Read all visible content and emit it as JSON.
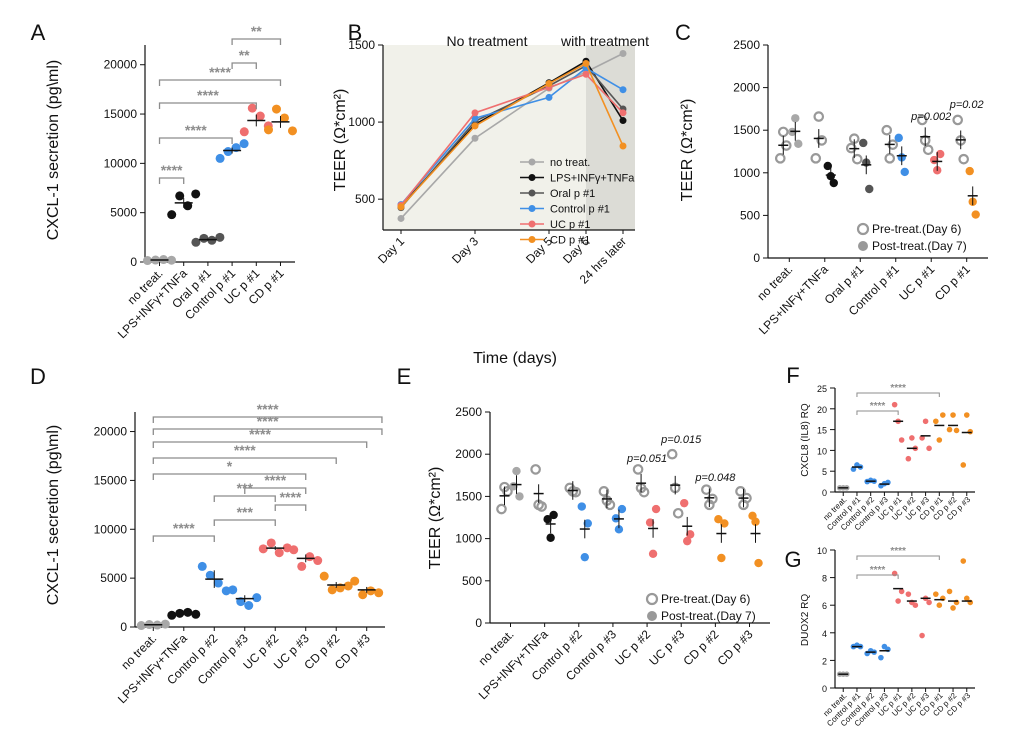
{
  "colors": {
    "grey": "#a8a8a8",
    "dark_grey": "#555555",
    "black": "#111111",
    "blue": "#3f8fe6",
    "pink": "#ef6f6f",
    "orange": "#f29022",
    "sig": "#8c8c8c"
  },
  "chart_data": [
    {
      "panel": "A",
      "type": "scatter",
      "ylabel": "CXCL-1 secretion (pg\\ml)",
      "ylim": [
        0,
        22000
      ],
      "yticks": [
        0,
        5000,
        10000,
        15000,
        20000
      ],
      "categories": [
        "no treat.",
        "LPS+INFγ+TNFa",
        "Oral p #1",
        "Control p #1",
        "UC p #1",
        "CD p #1"
      ],
      "series": [
        {
          "name": "no treat.",
          "color": "grey",
          "values": [
            150,
            200,
            250,
            180
          ]
        },
        {
          "name": "LPS+INFγ+TNFa",
          "color": "black",
          "values": [
            4800,
            6700,
            5700,
            6900
          ]
        },
        {
          "name": "Oral p #1",
          "color": "dark_grey",
          "values": [
            2000,
            2400,
            2200,
            2500
          ]
        },
        {
          "name": "Control p #1",
          "color": "blue",
          "values": [
            10500,
            11200,
            11600,
            12000
          ]
        },
        {
          "name": "UC p #1",
          "color": "pink",
          "values": [
            13200,
            15600,
            14800,
            13800
          ]
        },
        {
          "name": "CD p #1",
          "color": "orange",
          "values": [
            13400,
            15500,
            14600,
            13300
          ]
        }
      ],
      "means": [
        200,
        6000,
        2270,
        11300,
        14350,
        14200
      ],
      "sems": [
        30,
        500,
        120,
        300,
        600,
        600
      ],
      "significance": [
        {
          "from": 0,
          "to": 1,
          "label": "****",
          "y": 9200
        },
        {
          "from": 0,
          "to": 3,
          "label": "****",
          "y": 13800
        },
        {
          "from": 0,
          "to": 4,
          "label": "****",
          "y": 17500
        },
        {
          "from": 0,
          "to": 5,
          "label": "****",
          "y": 19000
        },
        {
          "from": 3,
          "to": 4,
          "label": "**",
          "y": 21600
        },
        {
          "from": 3,
          "to": 5,
          "label": "**",
          "y": 24500
        }
      ]
    },
    {
      "panel": "B",
      "type": "line",
      "ylabel": "TEER (Ω*cm²)",
      "xlabel": "Time (days)",
      "ylim": [
        300,
        1500
      ],
      "yticks": [
        500,
        1000,
        1500
      ],
      "categories": [
        "Day 1",
        "Day 3",
        "Day 5",
        "Day 6",
        "24 hrs later"
      ],
      "x": [
        1,
        3,
        5,
        6,
        7
      ],
      "region_labels": [
        "No treatment",
        "with treatment"
      ],
      "series": [
        {
          "name": "no treat.",
          "color": "grey",
          "values": [
            375,
            895,
            1220,
            1325,
            1445
          ]
        },
        {
          "name": "LPS+INFγ+TNFa",
          "color": "black",
          "values": [
            455,
            985,
            1255,
            1395,
            1010
          ]
        },
        {
          "name": "Oral p #1",
          "color": "dark_grey",
          "values": [
            445,
            1005,
            1235,
            1365,
            1085
          ]
        },
        {
          "name": "Control p #1",
          "color": "blue",
          "values": [
            465,
            1025,
            1160,
            1350,
            1210
          ]
        },
        {
          "name": "UC p #1",
          "color": "pink",
          "values": [
            460,
            1060,
            1225,
            1310,
            1060
          ]
        },
        {
          "name": "CD p #1",
          "color": "orange",
          "values": [
            450,
            975,
            1250,
            1380,
            845
          ]
        }
      ],
      "legend": [
        "no treat.",
        "LPS+INFγ+TNFa",
        "Oral p #1",
        "Control  p #1",
        "UC p #1",
        "CD p #1"
      ]
    },
    {
      "panel": "C",
      "type": "scatter",
      "ylabel": "TEER (Ω*cm²)",
      "ylim": [
        0,
        2500
      ],
      "yticks": [
        0,
        500,
        1000,
        1500,
        2000,
        2500
      ],
      "categories": [
        "no treat.",
        "LPS+INFγ+TNFa",
        "Oral p #1",
        "Control p #1",
        "UC p #1",
        "CD p #1"
      ],
      "colors": [
        "grey",
        "black",
        "dark_grey",
        "blue",
        "pink",
        "orange"
      ],
      "pre": [
        [
          1170,
          1480,
          1320
        ],
        [
          1170,
          1660,
          1380
        ],
        [
          1290,
          1400,
          1160
        ],
        [
          1500,
          1170,
          1330
        ],
        [
          1620,
          1380,
          1270
        ],
        [
          1620,
          1380,
          1160
        ]
      ],
      "post": [
        [
          1480,
          1640,
          1340
        ],
        [
          1080,
          960,
          880
        ],
        [
          1350,
          1120,
          810
        ],
        [
          1410,
          1180,
          1010
        ],
        [
          1150,
          1030,
          1220
        ],
        [
          1020,
          660,
          510
        ]
      ],
      "pvalues": [
        {
          "cat": 4,
          "label": "p=0.002"
        },
        {
          "cat": 5,
          "label": "p=0.02"
        }
      ],
      "legend": [
        "Pre-treat.(Day 6)",
        "Post-treat.(Day 7)"
      ]
    },
    {
      "panel": "D",
      "type": "scatter",
      "ylabel": "CXCL-1 secretion (pg\\ml)",
      "ylim": [
        0,
        22000
      ],
      "yticks": [
        0,
        5000,
        10000,
        15000,
        20000
      ],
      "categories": [
        "no treat.",
        "LPS+INFγ+TNFa",
        "Control p #2",
        "Control p #3",
        "UC p #2",
        "UC p #3",
        "CD p #2",
        "CD p #3"
      ],
      "series": [
        {
          "name": "no treat.",
          "color": "grey",
          "values": [
            150,
            250,
            200,
            300
          ]
        },
        {
          "name": "LPS+INFγ+TNFa",
          "color": "black",
          "values": [
            1200,
            1400,
            1500,
            1300
          ]
        },
        {
          "name": "Control p #2",
          "color": "blue",
          "values": [
            6200,
            5300,
            4500,
            3700
          ]
        },
        {
          "name": "Control p #3",
          "color": "blue",
          "values": [
            3800,
            2600,
            2200,
            3000
          ]
        },
        {
          "name": "UC p #2",
          "color": "pink",
          "values": [
            8000,
            8600,
            7600,
            8100
          ]
        },
        {
          "name": "UC p #3",
          "color": "pink",
          "values": [
            7900,
            6200,
            7200,
            6800
          ]
        },
        {
          "name": "CD p #2",
          "color": "orange",
          "values": [
            5200,
            3800,
            4000,
            4200
          ]
        },
        {
          "name": "CD p #3",
          "color": "orange",
          "values": [
            4700,
            3300,
            3700,
            3500
          ]
        }
      ],
      "means": [
        225,
        1350,
        4900,
        2900,
        8075,
        7025,
        4300,
        3800
      ],
      "sems": [
        30,
        60,
        900,
        350,
        200,
        400,
        300,
        300
      ],
      "significance": [
        {
          "from": 0,
          "to": 2,
          "label": "****",
          "y": 10000
        },
        {
          "from": 2,
          "to": 4,
          "label": "***",
          "y": 11700
        },
        {
          "from": 4,
          "to": 5,
          "label": "****",
          "y": 11700
        },
        {
          "from": 2,
          "to": 4,
          "label": "***",
          "y": 14000
        },
        {
          "from": 3,
          "to": 5,
          "label": "****",
          "y": 14000
        },
        {
          "from": 0,
          "to": 5,
          "label": "*",
          "y": 16000
        },
        {
          "from": 0,
          "to": 6,
          "label": "****",
          "y": 18000
        },
        {
          "from": 0,
          "to": 7,
          "label": "****",
          "y": 20000
        },
        {
          "from": 0,
          "to": 8,
          "label": "****",
          "y": 22000
        },
        {
          "from": 0,
          "to": 9,
          "label": "****",
          "y": 24000
        }
      ]
    },
    {
      "panel": "E",
      "type": "scatter",
      "ylabel": "TEER (Ω*cm²)",
      "ylim": [
        0,
        2500
      ],
      "yticks": [
        0,
        500,
        1000,
        1500,
        2000,
        2500
      ],
      "categories": [
        "no treat.",
        "LPS+INFγ+TNFa",
        "Control p #2",
        "Control p #3",
        "UC p #2",
        "UC p #3",
        "CD p #2",
        "CD p #3"
      ],
      "colors": [
        "grey",
        "black",
        "blue",
        "blue",
        "pink",
        "pink",
        "orange",
        "orange"
      ],
      "pre": [
        [
          1350,
          1610,
          1560
        ],
        [
          1820,
          1400,
          1380
        ],
        [
          1600,
          1560,
          1550
        ],
        [
          1560,
          1450,
          1400
        ],
        [
          1820,
          1600,
          1550
        ],
        [
          2000,
          1600,
          1300
        ],
        [
          1580,
          1400,
          1470
        ],
        [
          1560,
          1400,
          1480
        ]
      ],
      "post": [
        [
          1620,
          1800,
          1500
        ],
        [
          1230,
          1010,
          1280
        ],
        [
          1380,
          780,
          1180
        ],
        [
          1240,
          1110,
          1350
        ],
        [
          1190,
          820,
          1350
        ],
        [
          1420,
          970,
          1050
        ],
        [
          1230,
          770,
          1180
        ],
        [
          1270,
          1200,
          710
        ]
      ],
      "pvalues": [
        {
          "cat": 4,
          "label": "p=0.051"
        },
        {
          "cat": 5,
          "label": "p=0.015"
        },
        {
          "cat": 6,
          "label": "p=0.048"
        }
      ],
      "legend": [
        "Pre-treat.(Day 6)",
        "Post-treat.(Day 7)"
      ]
    },
    {
      "panel": "F",
      "type": "scatter",
      "ylabel": "CXCL8 (IL8) RQ",
      "ylim": [
        0,
        25
      ],
      "yticks": [
        0,
        5,
        10,
        15,
        20,
        25
      ],
      "categories": [
        "no treat.",
        "Control p #1",
        "Control p #2",
        "Control p #3",
        "UC p #1",
        "UC p #2",
        "UC p #3",
        "CD p #1",
        "CD p #2",
        "CD p #3"
      ],
      "colors": [
        "grey",
        "blue",
        "blue",
        "blue",
        "pink",
        "pink",
        "pink",
        "orange",
        "orange",
        "orange"
      ],
      "series": [
        [
          1,
          1,
          1
        ],
        [
          5.5,
          6.5,
          6
        ],
        [
          2.5,
          2.8,
          2.6
        ],
        [
          1.5,
          2.0,
          2.3
        ],
        [
          21,
          17,
          12.5
        ],
        [
          8,
          13,
          10.5
        ],
        [
          13,
          17,
          10.5
        ],
        [
          17,
          12.5,
          18.5
        ],
        [
          15,
          18.5,
          14.8
        ],
        [
          6.5,
          18.5,
          14.5
        ]
      ],
      "means": [
        1,
        6,
        2.6,
        1.9,
        17,
        10.5,
        13.5,
        16,
        16,
        14.3
      ],
      "significance": [
        {
          "from": 1,
          "to": 4,
          "label": "****",
          "y": 16.5
        },
        {
          "from": 1,
          "to": 7,
          "label": "****",
          "y": 22
        }
      ]
    },
    {
      "panel": "G",
      "type": "scatter",
      "ylabel": "DUOX2 RQ",
      "ylim": [
        0,
        10
      ],
      "yticks": [
        0,
        2,
        4,
        6,
        8,
        10
      ],
      "categories": [
        "no treat.",
        "Control p #1",
        "Control p #2",
        "Control p #3",
        "UC p #1",
        "UC p #2",
        "UC p #3",
        "CD p #1",
        "CD p #2",
        "CD p #3"
      ],
      "colors": [
        "grey",
        "blue",
        "blue",
        "blue",
        "pink",
        "pink",
        "pink",
        "orange",
        "orange",
        "orange"
      ],
      "series": [
        [
          1,
          1,
          1
        ],
        [
          3.0,
          3.1,
          3.0
        ],
        [
          2.5,
          2.7,
          2.6
        ],
        [
          2.2,
          3.0,
          2.8
        ],
        [
          8.3,
          6.3,
          7.0
        ],
        [
          6.8,
          6.2,
          6.0
        ],
        [
          3.8,
          6.5,
          6.2
        ],
        [
          6.8,
          6.0,
          6.5
        ],
        [
          7.0,
          5.8,
          6.2
        ],
        [
          9.2,
          6.5,
          6.2
        ]
      ],
      "means": [
        1,
        3.0,
        2.6,
        2.7,
        7.2,
        6.3,
        6.5,
        6.4,
        6.3,
        6.3
      ],
      "significance": [
        {
          "from": 1,
          "to": 4,
          "label": "****",
          "y": 8.3
        },
        {
          "from": 1,
          "to": 7,
          "label": "****",
          "y": 9.9
        }
      ]
    }
  ]
}
